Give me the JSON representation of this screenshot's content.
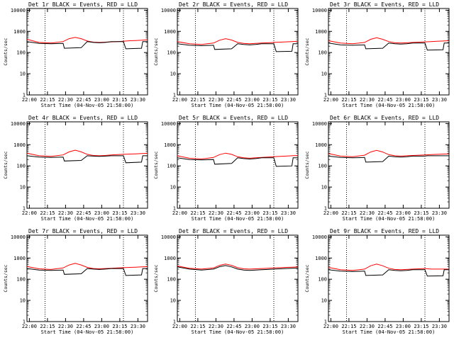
{
  "chart_data": [
    {
      "type": "line",
      "title": "Det 1r BLACK = Events, RED = LLD",
      "xlabel": "Start Time (04-Nov-05 21:58:00)",
      "ylabel": "Counts/sec",
      "xticks": [
        "22:00",
        "22:15",
        "22:30",
        "22:45",
        "23:00",
        "23:15",
        "23:30"
      ],
      "yticks": [
        "1",
        "10",
        "100",
        "1000",
        "10000"
      ],
      "x_range_min": [
        0,
        100
      ],
      "ylim": [
        1,
        12000
      ],
      "y_scale": "log",
      "grid": false,
      "dotted_vlines_min": [
        15,
        80
      ],
      "series": [
        {
          "name": "BLACK = Events",
          "color": "#000000",
          "x": [
            0,
            10,
            20,
            30,
            31,
            45,
            50,
            55,
            60,
            65,
            70,
            75,
            80,
            82,
            95,
            96,
            100
          ],
          "values": [
            330,
            270,
            260,
            270,
            160,
            170,
            330,
            300,
            290,
            300,
            330,
            330,
            330,
            150,
            160,
            330,
            330
          ]
        },
        {
          "name": "RED = LLD",
          "color": "#ff0000",
          "x": [
            0,
            10,
            20,
            30,
            35,
            40,
            45,
            50,
            55,
            60,
            65,
            70,
            75,
            80,
            85,
            90,
            95,
            100
          ],
          "values": [
            420,
            300,
            280,
            330,
            450,
            520,
            450,
            350,
            310,
            300,
            310,
            320,
            330,
            340,
            360,
            370,
            380,
            400
          ]
        }
      ]
    },
    {
      "type": "line",
      "title": "Det 2r BLACK = Events, RED = LLD",
      "xlabel": "Start Time (04-Nov-05 21:58:00)",
      "ylabel": "Counts/sec",
      "xticks": [
        "22:00",
        "22:15",
        "22:30",
        "22:45",
        "23:00",
        "23:15",
        "23:30"
      ],
      "yticks": [
        "1",
        "10",
        "100",
        "1000",
        "10000"
      ],
      "x_range_min": [
        0,
        100
      ],
      "ylim": [
        1,
        12000
      ],
      "y_scale": "log",
      "grid": false,
      "dotted_vlines_min": [
        15,
        80
      ],
      "series": [
        {
          "name": "BLACK = Events",
          "color": "#000000",
          "x": [
            0,
            10,
            20,
            30,
            31,
            45,
            50,
            55,
            60,
            65,
            70,
            75,
            80,
            82,
            95,
            96,
            100
          ],
          "values": [
            260,
            220,
            210,
            220,
            140,
            150,
            260,
            240,
            230,
            240,
            260,
            260,
            260,
            110,
            115,
            260,
            260
          ]
        },
        {
          "name": "RED = LLD",
          "color": "#ff0000",
          "x": [
            0,
            10,
            20,
            30,
            35,
            40,
            45,
            50,
            55,
            60,
            65,
            70,
            75,
            80,
            85,
            90,
            95,
            100
          ],
          "values": [
            330,
            260,
            240,
            280,
            380,
            450,
            390,
            300,
            270,
            260,
            270,
            280,
            290,
            300,
            310,
            320,
            330,
            340
          ]
        }
      ]
    },
    {
      "type": "line",
      "title": "Det 3r BLACK = Events, RED = LLD",
      "xlabel": "Start Time (04-Nov-05 21:58:00)",
      "ylabel": "Counts/sec",
      "xticks": [
        "22:00",
        "22:15",
        "22:30",
        "22:45",
        "23:00",
        "23:15",
        "23:30"
      ],
      "yticks": [
        "1",
        "10",
        "100",
        "1000",
        "10000"
      ],
      "x_range_min": [
        0,
        100
      ],
      "ylim": [
        1,
        12000
      ],
      "y_scale": "log",
      "grid": false,
      "dotted_vlines_min": [
        15,
        80
      ],
      "series": [
        {
          "name": "BLACK = Events",
          "color": "#000000",
          "x": [
            0,
            10,
            20,
            30,
            31,
            45,
            50,
            55,
            60,
            65,
            70,
            75,
            80,
            82,
            95,
            96,
            100
          ],
          "values": [
            280,
            230,
            220,
            230,
            150,
            160,
            280,
            260,
            250,
            260,
            280,
            280,
            280,
            130,
            135,
            280,
            280
          ]
        },
        {
          "name": "RED = LLD",
          "color": "#ff0000",
          "x": [
            0,
            10,
            20,
            30,
            35,
            40,
            45,
            50,
            55,
            60,
            65,
            70,
            75,
            80,
            85,
            90,
            95,
            100
          ],
          "values": [
            360,
            280,
            260,
            300,
            420,
            500,
            420,
            330,
            290,
            280,
            290,
            300,
            310,
            320,
            330,
            340,
            350,
            360
          ]
        }
      ]
    },
    {
      "type": "line",
      "title": "Det 4r BLACK = Events, RED = LLD",
      "xlabel": "Start Time (04-Nov-05 21:58:00)",
      "ylabel": "Counts/sec",
      "xticks": [
        "22:00",
        "22:15",
        "22:30",
        "22:45",
        "23:00",
        "23:15",
        "23:30"
      ],
      "yticks": [
        "1",
        "10",
        "100",
        "1000",
        "10000"
      ],
      "x_range_min": [
        0,
        100
      ],
      "ylim": [
        1,
        12000
      ],
      "y_scale": "log",
      "grid": false,
      "dotted_vlines_min": [
        15,
        80
      ],
      "series": [
        {
          "name": "BLACK = Events",
          "color": "#000000",
          "x": [
            0,
            10,
            20,
            30,
            31,
            45,
            50,
            55,
            60,
            65,
            70,
            75,
            80,
            82,
            95,
            96,
            100
          ],
          "values": [
            300,
            260,
            250,
            260,
            170,
            180,
            300,
            290,
            280,
            290,
            300,
            300,
            300,
            140,
            150,
            300,
            300
          ]
        },
        {
          "name": "RED = LLD",
          "color": "#ff0000",
          "x": [
            0,
            10,
            20,
            30,
            35,
            40,
            45,
            50,
            55,
            60,
            65,
            70,
            75,
            80,
            85,
            90,
            95,
            100
          ],
          "values": [
            400,
            300,
            280,
            330,
            460,
            550,
            460,
            350,
            310,
            300,
            310,
            330,
            340,
            350,
            360,
            370,
            380,
            390
          ]
        }
      ]
    },
    {
      "type": "line",
      "title": "Det 5r BLACK = Events, RED = LLD",
      "xlabel": "Start Time (04-Nov-05 21:58:00)",
      "ylabel": "Counts/sec",
      "xticks": [
        "22:00",
        "22:15",
        "22:30",
        "22:45",
        "23:00",
        "23:15",
        "23:30"
      ],
      "yticks": [
        "1",
        "10",
        "100",
        "1000",
        "10000"
      ],
      "x_range_min": [
        0,
        100
      ],
      "ylim": [
        1,
        12000
      ],
      "y_scale": "log",
      "grid": false,
      "dotted_vlines_min": [
        15,
        80
      ],
      "series": [
        {
          "name": "BLACK = Events",
          "color": "#000000",
          "x": [
            0,
            10,
            20,
            30,
            31,
            45,
            50,
            55,
            60,
            65,
            70,
            75,
            80,
            82,
            95,
            96,
            100
          ],
          "values": [
            240,
            200,
            190,
            200,
            120,
            130,
            240,
            220,
            210,
            220,
            240,
            240,
            240,
            95,
            100,
            240,
            240
          ]
        },
        {
          "name": "RED = LLD",
          "color": "#ff0000",
          "x": [
            0,
            10,
            20,
            30,
            35,
            40,
            45,
            50,
            55,
            60,
            65,
            70,
            75,
            80,
            85,
            90,
            95,
            100
          ],
          "values": [
            300,
            230,
            210,
            250,
            340,
            400,
            350,
            270,
            240,
            230,
            240,
            250,
            260,
            270,
            280,
            290,
            300,
            310
          ]
        }
      ]
    },
    {
      "type": "line",
      "title": "Det 6r BLACK = Events, RED = LLD",
      "xlabel": "Start Time (04-Nov-05 21:58:00)",
      "ylabel": "Counts/sec",
      "xticks": [
        "22:00",
        "22:15",
        "22:30",
        "22:45",
        "23:00",
        "23:15",
        "23:30"
      ],
      "yticks": [
        "1",
        "10",
        "100",
        "1000",
        "10000"
      ],
      "x_range_min": [
        0,
        100
      ],
      "ylim": [
        1,
        12000
      ],
      "y_scale": "log",
      "grid": false,
      "dotted_vlines_min": [
        15,
        80
      ],
      "series": [
        {
          "name": "BLACK = Events",
          "color": "#000000",
          "x": [
            0,
            10,
            20,
            30,
            31,
            45,
            50,
            55,
            60,
            65,
            70,
            75,
            80,
            82,
            95,
            96,
            100
          ],
          "values": [
            290,
            250,
            240,
            250,
            150,
            160,
            290,
            270,
            260,
            270,
            290,
            290,
            290,
            300,
            300,
            300,
            300
          ]
        },
        {
          "name": "RED = LLD",
          "color": "#ff0000",
          "x": [
            0,
            10,
            20,
            30,
            35,
            40,
            45,
            50,
            55,
            60,
            65,
            70,
            75,
            80,
            85,
            90,
            95,
            100
          ],
          "values": [
            380,
            290,
            270,
            320,
            450,
            540,
            450,
            340,
            300,
            290,
            300,
            310,
            320,
            330,
            340,
            350,
            360,
            370
          ]
        }
      ]
    },
    {
      "type": "line",
      "title": "Det 7r BLACK = Events, RED = LLD",
      "xlabel": "Start Time (04-Nov-05 21:58:00)",
      "ylabel": "Counts/sec",
      "xticks": [
        "22:00",
        "22:15",
        "22:30",
        "22:45",
        "23:00",
        "23:15",
        "23:30"
      ],
      "yticks": [
        "1",
        "10",
        "100",
        "1000",
        "10000"
      ],
      "x_range_min": [
        0,
        100
      ],
      "ylim": [
        1,
        12000
      ],
      "y_scale": "log",
      "grid": false,
      "dotted_vlines_min": [
        15,
        80
      ],
      "series": [
        {
          "name": "BLACK = Events",
          "color": "#000000",
          "x": [
            0,
            10,
            20,
            30,
            31,
            45,
            50,
            55,
            60,
            65,
            70,
            75,
            80,
            82,
            95,
            96,
            100
          ],
          "values": [
            320,
            270,
            260,
            270,
            170,
            180,
            320,
            300,
            290,
            300,
            320,
            320,
            320,
            150,
            160,
            320,
            320
          ]
        },
        {
          "name": "RED = LLD",
          "color": "#ff0000",
          "x": [
            0,
            10,
            20,
            30,
            35,
            40,
            45,
            50,
            55,
            60,
            65,
            70,
            75,
            80,
            85,
            90,
            95,
            100
          ],
          "values": [
            400,
            310,
            290,
            340,
            470,
            560,
            470,
            360,
            320,
            310,
            320,
            330,
            340,
            350,
            360,
            370,
            380,
            390
          ]
        }
      ]
    },
    {
      "type": "line",
      "title": "Det 8r BLACK = Events, RED = LLD",
      "xlabel": "Start Time (04-Nov-05 21:58:00)",
      "ylabel": "Counts/sec",
      "xticks": [
        "22:00",
        "22:15",
        "22:30",
        "22:45",
        "23:00",
        "23:15",
        "23:30"
      ],
      "yticks": [
        "1",
        "10",
        "100",
        "1000",
        "10000"
      ],
      "x_range_min": [
        0,
        100
      ],
      "ylim": [
        1,
        12000
      ],
      "y_scale": "log",
      "grid": false,
      "dotted_vlines_min": [
        15,
        80
      ],
      "series": [
        {
          "name": "BLACK = Events",
          "color": "#000000",
          "x": [
            0,
            10,
            20,
            30,
            35,
            40,
            45,
            50,
            55,
            60,
            65,
            70,
            75,
            80,
            85,
            90,
            95,
            100
          ],
          "values": [
            380,
            300,
            270,
            300,
            390,
            440,
            380,
            300,
            270,
            260,
            270,
            280,
            290,
            300,
            310,
            320,
            330,
            340
          ]
        },
        {
          "name": "RED = LLD",
          "color": "#ff0000",
          "x": [
            0,
            10,
            20,
            30,
            35,
            40,
            45,
            50,
            55,
            60,
            65,
            70,
            75,
            80,
            85,
            90,
            95,
            100
          ],
          "values": [
            420,
            330,
            300,
            340,
            450,
            520,
            450,
            350,
            310,
            300,
            310,
            320,
            330,
            340,
            350,
            360,
            370,
            380
          ]
        }
      ]
    },
    {
      "type": "line",
      "title": "Det 9r BLACK = Events, RED = LLD",
      "xlabel": "Start Time (04-Nov-05 21:58:00)",
      "ylabel": "Counts/sec",
      "xticks": [
        "22:00",
        "22:15",
        "22:30",
        "22:45",
        "23:00",
        "23:15",
        "23:30"
      ],
      "yticks": [
        "1",
        "10",
        "100",
        "1000",
        "10000"
      ],
      "x_range_min": [
        0,
        100
      ],
      "ylim": [
        1,
        12000
      ],
      "y_scale": "log",
      "grid": false,
      "dotted_vlines_min": [
        15,
        80
      ],
      "series": [
        {
          "name": "BLACK = Events",
          "color": "#000000",
          "x": [
            0,
            10,
            20,
            30,
            31,
            45,
            50,
            55,
            60,
            65,
            70,
            75,
            80,
            82,
            95,
            96,
            100
          ],
          "values": [
            280,
            240,
            230,
            240,
            150,
            160,
            280,
            260,
            250,
            260,
            280,
            280,
            280,
            140,
            145,
            280,
            280
          ]
        },
        {
          "name": "RED = LLD",
          "color": "#ff0000",
          "x": [
            0,
            10,
            20,
            30,
            35,
            40,
            45,
            50,
            55,
            60,
            65,
            70,
            75,
            80,
            85,
            90,
            95,
            100
          ],
          "values": [
            360,
            280,
            260,
            300,
            430,
            520,
            430,
            330,
            290,
            280,
            290,
            300,
            310,
            320,
            300,
            300,
            300,
            300
          ]
        }
      ]
    }
  ]
}
